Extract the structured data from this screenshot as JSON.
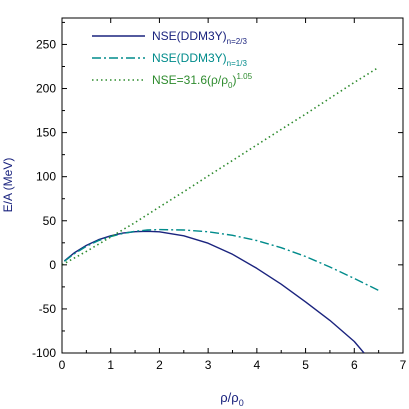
{
  "chart_data": {
    "type": "line",
    "xlabel": "ρ/ρ",
    "xlabel_sub": "0",
    "ylabel": "E/A (MeV)",
    "xlim": [
      0,
      7
    ],
    "ylim": [
      -100,
      280
    ],
    "xticks": [
      0,
      1,
      2,
      3,
      4,
      5,
      6,
      7
    ],
    "yticks": [
      -100,
      -50,
      0,
      50,
      100,
      150,
      200,
      250
    ],
    "grid": false,
    "legend_position": "top-left",
    "series": [
      {
        "name": "NSE(DDM3Y)",
        "name_sub": "n=2/3",
        "color": "#1a237e",
        "dash": "solid",
        "x": [
          0.05,
          0.25,
          0.5,
          0.75,
          1.0,
          1.25,
          1.5,
          1.75,
          2.0,
          2.5,
          3.0,
          3.5,
          4.0,
          4.5,
          5.0,
          5.5,
          6.0,
          6.2
        ],
        "y": [
          4.5,
          13.5,
          22.0,
          28.5,
          33.0,
          36.0,
          37.6,
          38.0,
          37.5,
          33.0,
          24.5,
          12.0,
          -4.0,
          -22.0,
          -42.0,
          -63.0,
          -87.0,
          -100.0
        ]
      },
      {
        "name": "NSE(DDM3Y)",
        "name_sub": "n=1/3",
        "color": "#008b8b",
        "dash": "dashdot",
        "x": [
          0.05,
          0.25,
          0.5,
          0.75,
          1.0,
          1.25,
          1.5,
          1.75,
          2.0,
          2.5,
          3.0,
          3.5,
          4.0,
          4.5,
          5.0,
          5.5,
          6.0,
          6.5
        ],
        "y": [
          4.0,
          12.5,
          21.0,
          27.5,
          32.0,
          35.5,
          38.0,
          39.5,
          40.0,
          39.5,
          37.5,
          33.5,
          27.5,
          19.5,
          9.5,
          -2.5,
          -15.5,
          -29.0
        ]
      },
      {
        "name": "NSE=31.6(ρ/ρ",
        "name_sub": "0",
        "name_tail": ")",
        "name_sup": "1.05",
        "color": "#2e8b2e",
        "dash": "dotted",
        "x": [
          0.0,
          0.5,
          1.0,
          1.5,
          2.0,
          2.5,
          3.0,
          3.5,
          4.0,
          4.5,
          5.0,
          5.5,
          6.0,
          6.5
        ],
        "y": [
          0.0,
          15.3,
          31.6,
          48.0,
          65.6,
          83.0,
          100.8,
          118.4,
          136.0,
          153.6,
          171.0,
          189.0,
          207.0,
          224.0
        ]
      }
    ]
  }
}
